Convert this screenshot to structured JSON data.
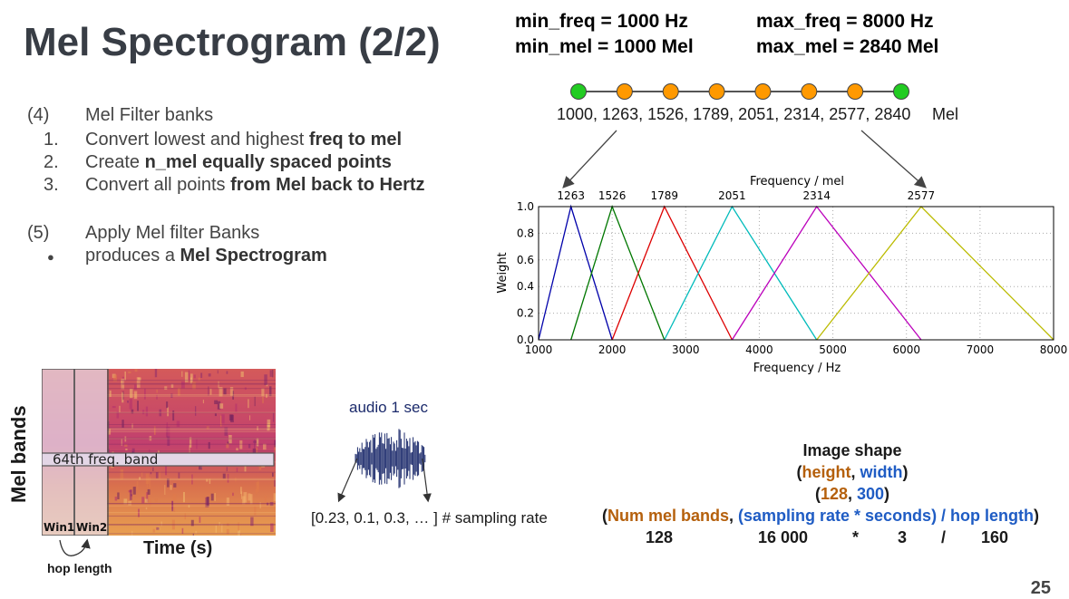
{
  "slide": {
    "title": "Mel Spectrogram (2/2)",
    "page_number": "25"
  },
  "steps": {
    "item4": {
      "num": "(4)",
      "text": "Mel Filter banks"
    },
    "sub": [
      {
        "num": "1.",
        "text": "Convert lowest and highest ",
        "bold": "freq to mel"
      },
      {
        "num": "2.",
        "text": "Create ",
        "bold": "n_mel equally spaced points"
      },
      {
        "num": "3.",
        "text": "Convert all points ",
        "bold": "from Mel back to Hertz"
      }
    ],
    "item5": {
      "num": "(5)",
      "text": "Apply Mel filter Banks"
    },
    "bullet": {
      "num": "●",
      "text": "produces a ",
      "bold": "Mel Spectrogram"
    }
  },
  "params": {
    "min_freq": "min_freq = 1000 Hz",
    "max_freq": "max_freq = 8000 Hz",
    "min_mel": "min_mel = 1000 Mel",
    "max_mel": "max_mel = 2840 Mel"
  },
  "mel_scale": {
    "points_text": "1000, 1263, 1526, 1789, 2051, 2314, 2577, 2840",
    "unit": "Mel",
    "colors": {
      "endpoint": "#22cc22",
      "inner": "#ff9900",
      "line": "#555555"
    }
  },
  "chart_data": {
    "type": "line",
    "xlabel": "Frequency / Hz",
    "ylabel": "Weight",
    "top_label": "Frequency / mel",
    "xlim": [
      1000,
      8000
    ],
    "ylim": [
      0,
      1
    ],
    "xticks": [
      "1000",
      "2000",
      "3000",
      "4000",
      "5000",
      "6000",
      "7000",
      "8000"
    ],
    "yticks": [
      "0.0",
      "0.2",
      "0.4",
      "0.6",
      "0.8",
      "1.0"
    ],
    "top_ticks": [
      "1263",
      "1526",
      "1789",
      "2051",
      "2314",
      "2577"
    ],
    "grid": true,
    "series": [
      {
        "color": "#0000aa",
        "x": [
          1000,
          1440,
          2000
        ],
        "y": [
          0,
          1,
          0
        ]
      },
      {
        "color": "#007700",
        "x": [
          1440,
          2000,
          2710
        ],
        "y": [
          0,
          1,
          0
        ]
      },
      {
        "color": "#dd0000",
        "x": [
          2000,
          2710,
          3630
        ],
        "y": [
          0,
          1,
          0
        ]
      },
      {
        "color": "#00bbbb",
        "x": [
          2710,
          3630,
          4780
        ],
        "y": [
          0,
          1,
          0
        ]
      },
      {
        "color": "#bb00bb",
        "x": [
          3630,
          4780,
          6200
        ],
        "y": [
          0,
          1,
          0
        ]
      },
      {
        "color": "#bbbb00",
        "x": [
          4780,
          6200,
          8000
        ],
        "y": [
          0,
          1,
          0
        ]
      }
    ]
  },
  "spectrogram": {
    "mel_bands_label": "Mel bands",
    "band_label": "64th freq. band",
    "win1": "Win1",
    "win2": "Win2",
    "time_label": "Time (s)",
    "hop_label": "hop length"
  },
  "audio": {
    "label": "audio 1 sec",
    "sampling_text": "[0.23, 0.1, 0.3, … ] # sampling rate",
    "wave_color": "#1b2a6b"
  },
  "image_shape": {
    "title": "Image shape",
    "line1": {
      "open": "(",
      "a": "height",
      "sep": ", ",
      "b": "width",
      "close": ")"
    },
    "line2": {
      "open": "(",
      "a": "128",
      "sep": ", ",
      "b": "300",
      "close": ")"
    },
    "line3": {
      "open": "(",
      "a": "Num mel bands",
      "sep": ", ",
      "b": "(sampling rate * seconds) / hop length",
      "close": ")"
    },
    "line4": {
      "v1": "128",
      "v2": "16 000",
      "op1": "*",
      "v3": "3",
      "op2": "/",
      "v4": "160"
    }
  }
}
